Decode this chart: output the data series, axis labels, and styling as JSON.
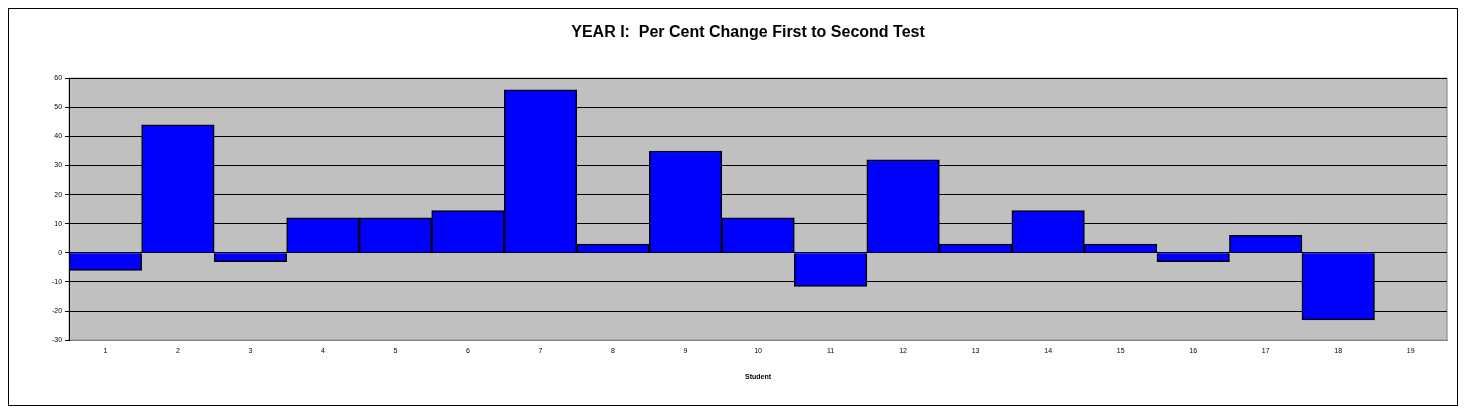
{
  "chart_data": {
    "type": "bar",
    "title": "YEAR I:  Per Cent Change First to Second Test",
    "xlabel": "Student",
    "categories": [
      "1",
      "2",
      "3",
      "4",
      "5",
      "6",
      "7",
      "8",
      "9",
      "10",
      "11",
      "12",
      "13",
      "14",
      "15",
      "16",
      "17",
      "18",
      "19"
    ],
    "values": [
      -6,
      44,
      -3,
      12,
      12,
      14.5,
      56,
      3,
      35,
      12,
      -11.5,
      32,
      3,
      14.5,
      3,
      -3,
      6,
      -23,
      null
    ],
    "color": "#0000ff",
    "ylim": [
      -30,
      60
    ],
    "yticks": [
      -30,
      -20,
      -10,
      0,
      10,
      20,
      30,
      40,
      50,
      60
    ],
    "grid": "y",
    "legend": false
  }
}
